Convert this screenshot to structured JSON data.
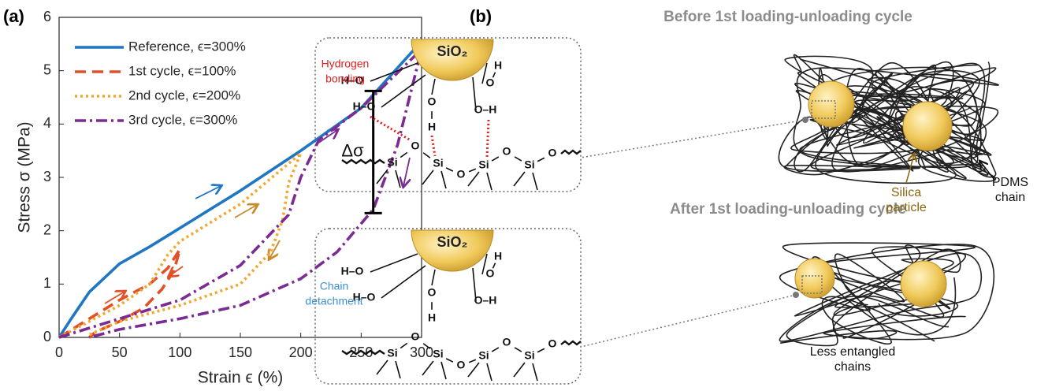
{
  "chart_data": {
    "type": "line",
    "panel_label": "(a)",
    "x_label": "Strain ϵ (%)",
    "y_label": "Stress σ (MPa)",
    "xlim": [
      0,
      300
    ],
    "xticks": [
      0,
      50,
      100,
      150,
      200,
      250,
      300
    ],
    "ylim": [
      0,
      6
    ],
    "yticks": [
      0,
      1,
      2,
      3,
      4,
      5,
      6
    ],
    "legend": "upper left",
    "series": [
      {
        "name": "Reference, ϵ=300%",
        "color": "#1f77c4",
        "style": "solid",
        "x": [
          0,
          10,
          25,
          50,
          75,
          100,
          150,
          200,
          250,
          300
        ],
        "values": [
          0,
          0.35,
          0.85,
          1.38,
          1.7,
          2.05,
          2.75,
          3.5,
          4.3,
          5.55
        ]
      },
      {
        "name": "1st cycle, ϵ=100%",
        "color": "#e0512a",
        "style": "dashed",
        "x": [
          0,
          25,
          50,
          75,
          90,
          100,
          95,
          85,
          70,
          50,
          30,
          25
        ],
        "values": [
          0,
          0.35,
          0.7,
          1.0,
          1.3,
          1.65,
          1.25,
          0.9,
          0.55,
          0.3,
          0.1,
          0
        ]
      },
      {
        "name": "2nd cycle, ϵ=200%",
        "color": "#f0a830",
        "style": "dotted",
        "x": [
          0,
          25,
          50,
          75,
          90,
          100,
          150,
          200,
          190,
          185,
          175,
          150,
          100,
          50,
          25
        ],
        "values": [
          0,
          0.3,
          0.6,
          1.0,
          1.55,
          1.8,
          2.5,
          3.45,
          2.9,
          2.2,
          1.6,
          1.0,
          0.6,
          0.3,
          0.05
        ]
      },
      {
        "name": "3rd cycle, ϵ=300%",
        "color": "#7b2b92",
        "style": "dashdot",
        "x": [
          0,
          50,
          100,
          150,
          190,
          200,
          215,
          250,
          300,
          290,
          280,
          260,
          230,
          200,
          150,
          100,
          50,
          25
        ],
        "values": [
          0,
          0.35,
          0.7,
          1.35,
          2.3,
          3.0,
          3.7,
          4.3,
          5.4,
          4.5,
          3.6,
          2.4,
          1.6,
          1.1,
          0.6,
          0.35,
          0.15,
          0
        ]
      }
    ],
    "annotation": {
      "text": "Δσ",
      "x": 260,
      "y_low": 2.33,
      "y_high": 4.62
    }
  },
  "diagram": {
    "panel_label": "(b)",
    "before": {
      "title": "Before 1st loading-unloading cycle",
      "particle": "SiO₂",
      "bond_label": [
        "Hydrogen",
        "bonding"
      ],
      "atoms": [
        "H–O",
        "H–O",
        "O",
        "H",
        "O–H",
        "O",
        "H",
        "Si",
        "O",
        "Si",
        "O",
        "Si",
        "O",
        "Si",
        "O"
      ],
      "chain_label": [
        "PDMS",
        "chain"
      ],
      "silica_label": [
        "Silica",
        "particle"
      ]
    },
    "after": {
      "title": "After 1st loading-unloading cycle",
      "particle": "SiO₂",
      "detach_label": [
        "Chain",
        "detachment"
      ],
      "atoms": [
        "H–O",
        "H–O",
        "O",
        "H",
        "O–H",
        "O",
        "H",
        "Si",
        "O",
        "Si",
        "O",
        "Si",
        "O",
        "Si",
        "O"
      ],
      "chains_label": [
        "Less entangled",
        "chains"
      ]
    }
  }
}
